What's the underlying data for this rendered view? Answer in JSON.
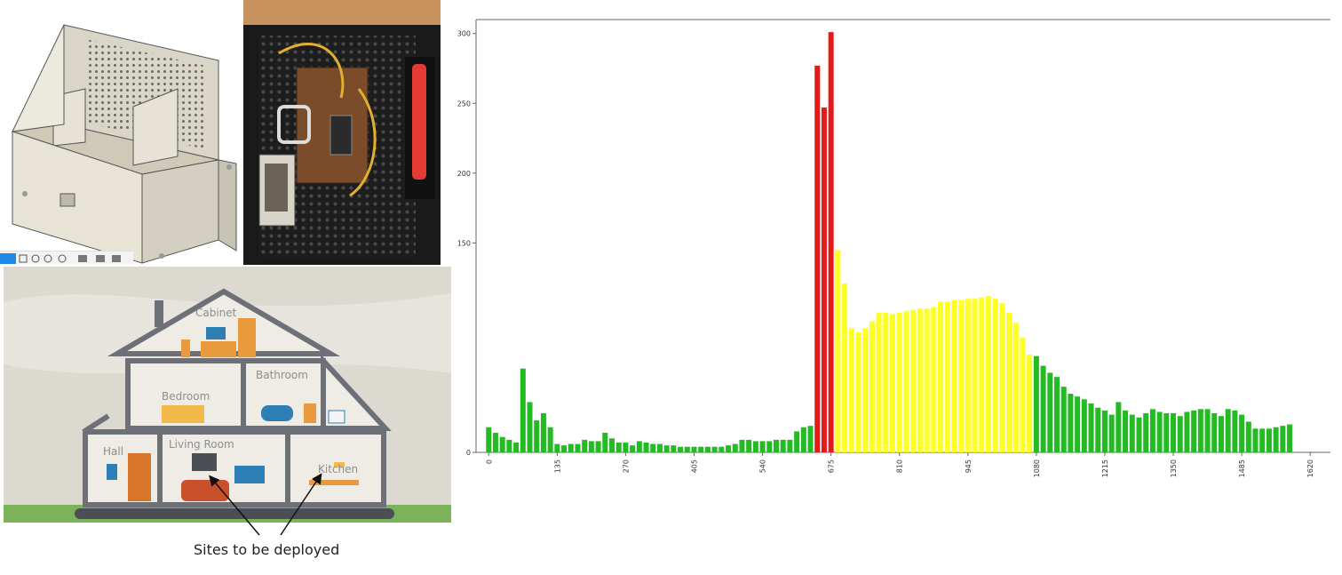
{
  "cad_panel": {
    "toolbar_icons": [
      "select-icon",
      "grid-icon",
      "pan-icon",
      "orbit-icon",
      "zoom-icon",
      "display-icon",
      "view-icon"
    ]
  },
  "house_panel": {
    "rooms": {
      "cabinet": "Cabinet",
      "bedroom": "Bedroom",
      "bathroom": "Bathroom",
      "hall": "Hall",
      "living_room": "Living Room",
      "kitchen": "Kitchen"
    },
    "caption": "Sites to be deployed"
  },
  "chart_data": {
    "type": "bar",
    "grid": false,
    "legend": "none",
    "xlabel": "",
    "ylabel": "",
    "xlim": [
      -25,
      1660
    ],
    "ylim": [
      0,
      310
    ],
    "x_ticks": [
      0,
      135,
      270,
      405,
      540,
      675,
      810,
      945,
      1080,
      1215,
      1350,
      1485,
      1620
    ],
    "x_tick_labels": [
      "0",
      "135",
      "270",
      "405",
      "540",
      "675",
      "810",
      "945",
      "1080",
      "1215",
      "1350",
      "1485",
      "1620"
    ],
    "y_ticks": [
      0,
      150,
      200,
      250,
      300
    ],
    "y_tick_labels": [
      "0",
      "150",
      "200",
      "250",
      "300"
    ],
    "bar_width": 10.5,
    "color_legend": {
      "#22bb22": "green",
      "#ffff22": "yellow",
      "#e41a1a": "red"
    },
    "bars": [
      {
        "x": 0,
        "y": 18,
        "color": "#22bb22"
      },
      {
        "x": 13.5,
        "y": 14,
        "color": "#22bb22"
      },
      {
        "x": 27,
        "y": 11,
        "color": "#22bb22"
      },
      {
        "x": 40.5,
        "y": 9,
        "color": "#22bb22"
      },
      {
        "x": 54,
        "y": 7,
        "color": "#22bb22"
      },
      {
        "x": 67.5,
        "y": 60,
        "color": "#22bb22"
      },
      {
        "x": 81,
        "y": 36,
        "color": "#22bb22"
      },
      {
        "x": 94.5,
        "y": 23,
        "color": "#22bb22"
      },
      {
        "x": 108,
        "y": 28,
        "color": "#22bb22"
      },
      {
        "x": 121.5,
        "y": 18,
        "color": "#22bb22"
      },
      {
        "x": 135,
        "y": 6,
        "color": "#22bb22"
      },
      {
        "x": 148.5,
        "y": 5,
        "color": "#22bb22"
      },
      {
        "x": 162,
        "y": 6,
        "color": "#22bb22"
      },
      {
        "x": 175.5,
        "y": 6,
        "color": "#22bb22"
      },
      {
        "x": 189,
        "y": 9,
        "color": "#22bb22"
      },
      {
        "x": 202.5,
        "y": 8,
        "color": "#22bb22"
      },
      {
        "x": 216,
        "y": 8,
        "color": "#22bb22"
      },
      {
        "x": 229.5,
        "y": 14,
        "color": "#22bb22"
      },
      {
        "x": 243,
        "y": 10,
        "color": "#22bb22"
      },
      {
        "x": 256.5,
        "y": 7,
        "color": "#22bb22"
      },
      {
        "x": 270,
        "y": 7,
        "color": "#22bb22"
      },
      {
        "x": 283.5,
        "y": 5,
        "color": "#22bb22"
      },
      {
        "x": 297,
        "y": 8,
        "color": "#22bb22"
      },
      {
        "x": 310.5,
        "y": 7,
        "color": "#22bb22"
      },
      {
        "x": 324,
        "y": 6,
        "color": "#22bb22"
      },
      {
        "x": 337.5,
        "y": 6,
        "color": "#22bb22"
      },
      {
        "x": 351,
        "y": 5,
        "color": "#22bb22"
      },
      {
        "x": 364.5,
        "y": 5,
        "color": "#22bb22"
      },
      {
        "x": 378,
        "y": 4,
        "color": "#22bb22"
      },
      {
        "x": 391.5,
        "y": 4,
        "color": "#22bb22"
      },
      {
        "x": 405,
        "y": 4,
        "color": "#22bb22"
      },
      {
        "x": 418.5,
        "y": 4,
        "color": "#22bb22"
      },
      {
        "x": 432,
        "y": 4,
        "color": "#22bb22"
      },
      {
        "x": 445.5,
        "y": 4,
        "color": "#22bb22"
      },
      {
        "x": 459,
        "y": 4,
        "color": "#22bb22"
      },
      {
        "x": 472.5,
        "y": 5,
        "color": "#22bb22"
      },
      {
        "x": 486,
        "y": 6,
        "color": "#22bb22"
      },
      {
        "x": 499.5,
        "y": 9,
        "color": "#22bb22"
      },
      {
        "x": 513,
        "y": 9,
        "color": "#22bb22"
      },
      {
        "x": 526.5,
        "y": 8,
        "color": "#22bb22"
      },
      {
        "x": 540,
        "y": 8,
        "color": "#22bb22"
      },
      {
        "x": 553.5,
        "y": 8,
        "color": "#22bb22"
      },
      {
        "x": 567,
        "y": 9,
        "color": "#22bb22"
      },
      {
        "x": 580.5,
        "y": 9,
        "color": "#22bb22"
      },
      {
        "x": 594,
        "y": 9,
        "color": "#22bb22"
      },
      {
        "x": 607.5,
        "y": 15,
        "color": "#22bb22"
      },
      {
        "x": 621,
        "y": 18,
        "color": "#22bb22"
      },
      {
        "x": 634.5,
        "y": 19,
        "color": "#22bb22"
      },
      {
        "x": 648,
        "y": 277,
        "color": "#e41a1a"
      },
      {
        "x": 661.5,
        "y": 247,
        "color": "#e41a1a"
      },
      {
        "x": 675,
        "y": 301,
        "color": "#e41a1a"
      },
      {
        "x": 688.5,
        "y": 145,
        "color": "#ffff22"
      },
      {
        "x": 702,
        "y": 121,
        "color": "#ffff22"
      },
      {
        "x": 715.5,
        "y": 89,
        "color": "#ffff22"
      },
      {
        "x": 729,
        "y": 86,
        "color": "#ffff22"
      },
      {
        "x": 742.5,
        "y": 89,
        "color": "#ffff22"
      },
      {
        "x": 756,
        "y": 94,
        "color": "#ffff22"
      },
      {
        "x": 769.5,
        "y": 100,
        "color": "#ffff22"
      },
      {
        "x": 783,
        "y": 100,
        "color": "#ffff22"
      },
      {
        "x": 796.5,
        "y": 99,
        "color": "#ffff22"
      },
      {
        "x": 810,
        "y": 100,
        "color": "#ffff22"
      },
      {
        "x": 823.5,
        "y": 101,
        "color": "#ffff22"
      },
      {
        "x": 837,
        "y": 102,
        "color": "#ffff22"
      },
      {
        "x": 850.5,
        "y": 103,
        "color": "#ffff22"
      },
      {
        "x": 864,
        "y": 103,
        "color": "#ffff22"
      },
      {
        "x": 877.5,
        "y": 104,
        "color": "#ffff22"
      },
      {
        "x": 891,
        "y": 108,
        "color": "#ffff22"
      },
      {
        "x": 904.5,
        "y": 108,
        "color": "#ffff22"
      },
      {
        "x": 918,
        "y": 109,
        "color": "#ffff22"
      },
      {
        "x": 931.5,
        "y": 109,
        "color": "#ffff22"
      },
      {
        "x": 945,
        "y": 110,
        "color": "#ffff22"
      },
      {
        "x": 958.5,
        "y": 110,
        "color": "#ffff22"
      },
      {
        "x": 972,
        "y": 111,
        "color": "#ffff22"
      },
      {
        "x": 985.5,
        "y": 112,
        "color": "#ffff22"
      },
      {
        "x": 999,
        "y": 110,
        "color": "#ffff22"
      },
      {
        "x": 1012.5,
        "y": 107,
        "color": "#ffff22"
      },
      {
        "x": 1026,
        "y": 100,
        "color": "#ffff22"
      },
      {
        "x": 1039.5,
        "y": 93,
        "color": "#ffff22"
      },
      {
        "x": 1053,
        "y": 82,
        "color": "#ffff22"
      },
      {
        "x": 1066.5,
        "y": 70,
        "color": "#ffff22"
      },
      {
        "x": 1080,
        "y": 69,
        "color": "#22bb22"
      },
      {
        "x": 1093.5,
        "y": 62,
        "color": "#22bb22"
      },
      {
        "x": 1107,
        "y": 57,
        "color": "#22bb22"
      },
      {
        "x": 1120.5,
        "y": 54,
        "color": "#22bb22"
      },
      {
        "x": 1134,
        "y": 47,
        "color": "#22bb22"
      },
      {
        "x": 1147.5,
        "y": 42,
        "color": "#22bb22"
      },
      {
        "x": 1161,
        "y": 40,
        "color": "#22bb22"
      },
      {
        "x": 1174.5,
        "y": 38,
        "color": "#22bb22"
      },
      {
        "x": 1188,
        "y": 35,
        "color": "#22bb22"
      },
      {
        "x": 1201.5,
        "y": 32,
        "color": "#22bb22"
      },
      {
        "x": 1215,
        "y": 30,
        "color": "#22bb22"
      },
      {
        "x": 1228.5,
        "y": 27,
        "color": "#22bb22"
      },
      {
        "x": 1242,
        "y": 36,
        "color": "#22bb22"
      },
      {
        "x": 1255.5,
        "y": 30,
        "color": "#22bb22"
      },
      {
        "x": 1269,
        "y": 27,
        "color": "#22bb22"
      },
      {
        "x": 1282.5,
        "y": 25,
        "color": "#22bb22"
      },
      {
        "x": 1296,
        "y": 28,
        "color": "#22bb22"
      },
      {
        "x": 1309.5,
        "y": 31,
        "color": "#22bb22"
      },
      {
        "x": 1323,
        "y": 29,
        "color": "#22bb22"
      },
      {
        "x": 1336.5,
        "y": 28,
        "color": "#22bb22"
      },
      {
        "x": 1350,
        "y": 28,
        "color": "#22bb22"
      },
      {
        "x": 1363.5,
        "y": 26,
        "color": "#22bb22"
      },
      {
        "x": 1377,
        "y": 29,
        "color": "#22bb22"
      },
      {
        "x": 1390.5,
        "y": 30,
        "color": "#22bb22"
      },
      {
        "x": 1404,
        "y": 31,
        "color": "#22bb22"
      },
      {
        "x": 1417.5,
        "y": 31,
        "color": "#22bb22"
      },
      {
        "x": 1431,
        "y": 28,
        "color": "#22bb22"
      },
      {
        "x": 1444.5,
        "y": 26,
        "color": "#22bb22"
      },
      {
        "x": 1458,
        "y": 31,
        "color": "#22bb22"
      },
      {
        "x": 1471.5,
        "y": 30,
        "color": "#22bb22"
      },
      {
        "x": 1485,
        "y": 27,
        "color": "#22bb22"
      },
      {
        "x": 1498.5,
        "y": 22,
        "color": "#22bb22"
      },
      {
        "x": 1512,
        "y": 17,
        "color": "#22bb22"
      },
      {
        "x": 1525.5,
        "y": 17,
        "color": "#22bb22"
      },
      {
        "x": 1539,
        "y": 17,
        "color": "#22bb22"
      },
      {
        "x": 1552.5,
        "y": 18,
        "color": "#22bb22"
      },
      {
        "x": 1566,
        "y": 19,
        "color": "#22bb22"
      },
      {
        "x": 1579.5,
        "y": 20,
        "color": "#22bb22"
      }
    ]
  }
}
